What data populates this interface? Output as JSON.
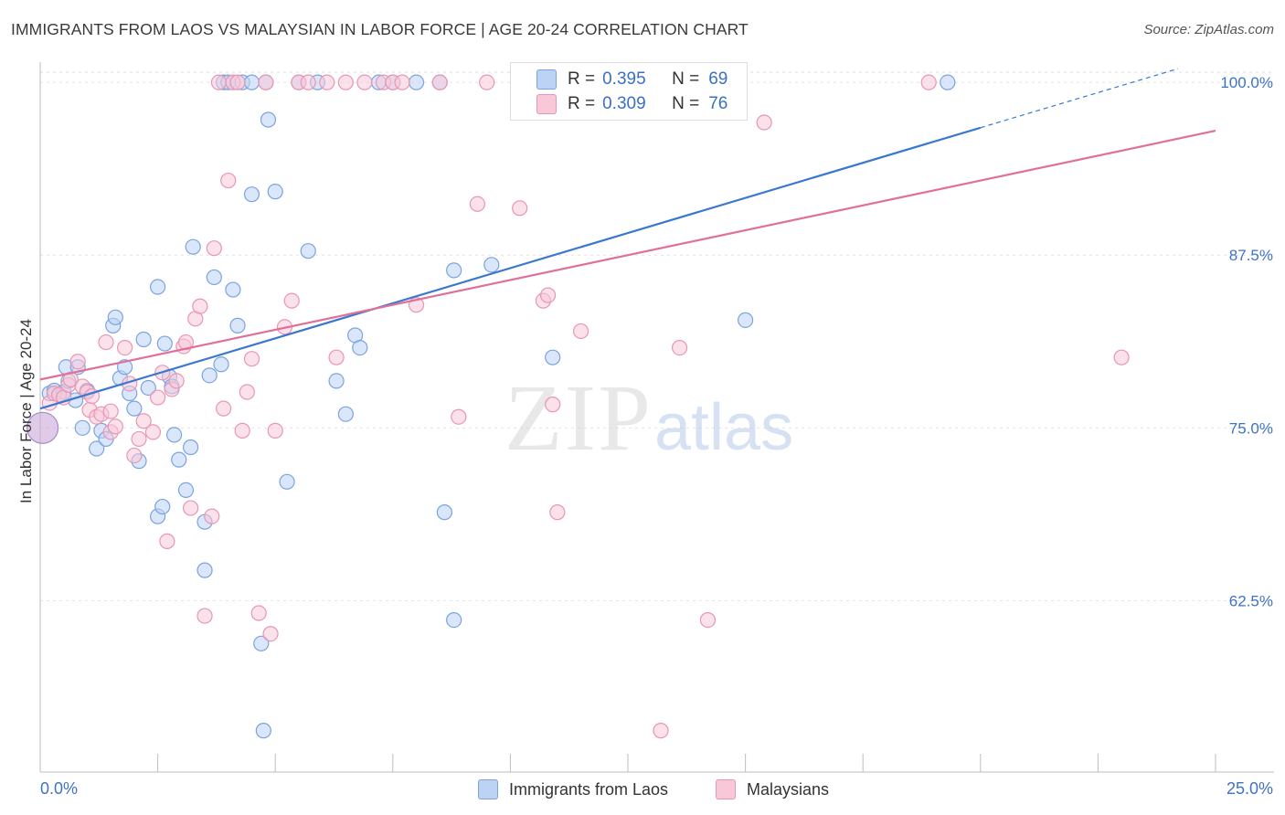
{
  "header": {
    "title": "IMMIGRANTS FROM LAOS VS MALAYSIAN IN LABOR FORCE | AGE 20-24 CORRELATION CHART",
    "source": "Source: ZipAtlas.com"
  },
  "watermark": {
    "zip": "ZIP",
    "atlas": "atlas"
  },
  "legend": {
    "r_key": "R =",
    "n_key": "N =",
    "rows": [
      {
        "r": "0.395",
        "n": "69",
        "fill": "#bcd3f5",
        "stroke": "#7aa3e0"
      },
      {
        "r": "0.309",
        "n": "76",
        "fill": "#f8c8d8",
        "stroke": "#e896b3"
      }
    ]
  },
  "chart_data": {
    "type": "scatter",
    "title": "IMMIGRANTS FROM LAOS VS MALAYSIAN IN LABOR FORCE | AGE 20-24 CORRELATION CHART",
    "ylabel": "In Labor Force | Age 20-24",
    "xlabel": "",
    "xlim": [
      0,
      25
    ],
    "ylim": [
      50.1,
      101.2
    ],
    "x_tick_labels": [
      "0.0%",
      "25.0%"
    ],
    "y_ticks": [
      {
        "value": 100,
        "label": "100.0%"
      },
      {
        "value": 87.5,
        "label": "87.5%"
      },
      {
        "value": 75,
        "label": "75.0%"
      },
      {
        "value": 62.5,
        "label": "62.5%"
      }
    ],
    "grid": "horizontal dashed",
    "colors": {
      "blue": "#3a78d0",
      "pink": "#e0709a",
      "axis_text": "#3f72c8"
    },
    "series": [
      {
        "name": "Immigrants from Laos",
        "color": "#7aa3e0",
        "fill": "#bcd3f5",
        "trend": {
          "x0": 0,
          "y0": 76.4,
          "x1": 25,
          "y1": 101.8,
          "solid_to": 20
        },
        "points": [
          [
            0.2,
            77.5
          ],
          [
            0.3,
            77.7
          ],
          [
            0.4,
            77.4
          ],
          [
            0.5,
            77.6
          ],
          [
            0.55,
            79.4
          ],
          [
            0.6,
            78.4
          ],
          [
            0.75,
            77.0
          ],
          [
            0.8,
            79.4
          ],
          [
            0.9,
            75.0
          ],
          [
            1.0,
            77.7
          ],
          [
            1.2,
            73.5
          ],
          [
            1.3,
            74.8
          ],
          [
            1.4,
            74.2
          ],
          [
            1.55,
            82.4
          ],
          [
            1.6,
            83.0
          ],
          [
            1.7,
            78.6
          ],
          [
            1.8,
            79.4
          ],
          [
            1.9,
            77.5
          ],
          [
            2.0,
            76.4
          ],
          [
            2.1,
            72.6
          ],
          [
            2.2,
            81.4
          ],
          [
            2.3,
            77.9
          ],
          [
            2.5,
            68.6
          ],
          [
            2.5,
            85.2
          ],
          [
            2.6,
            69.3
          ],
          [
            2.65,
            81.1
          ],
          [
            2.75,
            78.7
          ],
          [
            2.8,
            78.0
          ],
          [
            2.85,
            74.5
          ],
          [
            2.95,
            72.7
          ],
          [
            3.1,
            70.5
          ],
          [
            3.2,
            73.6
          ],
          [
            3.25,
            88.1
          ],
          [
            3.5,
            64.7
          ],
          [
            3.5,
            68.2
          ],
          [
            3.6,
            78.8
          ],
          [
            3.7,
            85.9
          ],
          [
            3.85,
            79.6
          ],
          [
            3.9,
            100
          ],
          [
            4.0,
            100
          ],
          [
            4.1,
            85.0
          ],
          [
            4.2,
            82.4
          ],
          [
            4.3,
            100
          ],
          [
            4.5,
            91.9
          ],
          [
            4.5,
            100
          ],
          [
            4.7,
            59.4
          ],
          [
            4.8,
            100
          ],
          [
            4.85,
            97.3
          ],
          [
            4.75,
            53.1
          ],
          [
            5.0,
            92.1
          ],
          [
            5.25,
            71.1
          ],
          [
            5.5,
            100
          ],
          [
            5.7,
            87.8
          ],
          [
            5.9,
            100
          ],
          [
            6.3,
            78.4
          ],
          [
            6.5,
            76.0
          ],
          [
            6.7,
            81.7
          ],
          [
            6.8,
            80.8
          ],
          [
            7.2,
            100
          ],
          [
            7.5,
            100
          ],
          [
            8.0,
            100
          ],
          [
            8.5,
            100
          ],
          [
            8.6,
            68.9
          ],
          [
            8.8,
            86.4
          ],
          [
            8.8,
            61.1
          ],
          [
            9.6,
            86.8
          ],
          [
            10.9,
            80.1
          ],
          [
            15.0,
            82.8
          ],
          [
            19.3,
            100
          ]
        ]
      },
      {
        "name": "Malaysians",
        "color": "#e896b3",
        "fill": "#f8c8d8",
        "trend": {
          "x0": 0,
          "y0": 78.5,
          "x1": 25,
          "y1": 96.5,
          "solid_to": 25
        },
        "points": [
          [
            0.2,
            76.8
          ],
          [
            0.3,
            77.5
          ],
          [
            0.4,
            77.4
          ],
          [
            0.5,
            77.2
          ],
          [
            0.6,
            78.1
          ],
          [
            0.65,
            78.5
          ],
          [
            0.8,
            79.8
          ],
          [
            0.9,
            78.0
          ],
          [
            1.0,
            77.6
          ],
          [
            1.05,
            76.3
          ],
          [
            1.1,
            77.3
          ],
          [
            1.2,
            75.8
          ],
          [
            1.3,
            76.0
          ],
          [
            1.4,
            81.2
          ],
          [
            1.5,
            74.7
          ],
          [
            1.5,
            76.2
          ],
          [
            1.6,
            75.1
          ],
          [
            1.8,
            80.8
          ],
          [
            1.9,
            78.2
          ],
          [
            2.0,
            73.0
          ],
          [
            2.1,
            74.2
          ],
          [
            2.2,
            75.5
          ],
          [
            2.4,
            74.7
          ],
          [
            2.5,
            77.2
          ],
          [
            2.6,
            79.0
          ],
          [
            2.7,
            66.8
          ],
          [
            2.8,
            77.8
          ],
          [
            2.9,
            78.4
          ],
          [
            3.05,
            80.9
          ],
          [
            3.1,
            81.2
          ],
          [
            3.2,
            69.2
          ],
          [
            3.3,
            82.9
          ],
          [
            3.4,
            83.8
          ],
          [
            3.5,
            61.4
          ],
          [
            3.65,
            68.6
          ],
          [
            3.7,
            88.0
          ],
          [
            3.8,
            100
          ],
          [
            3.9,
            76.4
          ],
          [
            4.0,
            92.9
          ],
          [
            4.1,
            100
          ],
          [
            4.2,
            100
          ],
          [
            4.3,
            74.8
          ],
          [
            4.4,
            77.6
          ],
          [
            4.5,
            80.0
          ],
          [
            4.65,
            61.6
          ],
          [
            4.8,
            100
          ],
          [
            4.9,
            60.1
          ],
          [
            5.0,
            74.8
          ],
          [
            5.2,
            82.3
          ],
          [
            5.35,
            84.2
          ],
          [
            5.5,
            100
          ],
          [
            5.7,
            100
          ],
          [
            6.1,
            100
          ],
          [
            6.3,
            80.1
          ],
          [
            6.5,
            100
          ],
          [
            6.9,
            100
          ],
          [
            7.3,
            100
          ],
          [
            7.5,
            100
          ],
          [
            7.7,
            100
          ],
          [
            8.0,
            83.9
          ],
          [
            8.5,
            100
          ],
          [
            8.9,
            75.8
          ],
          [
            9.3,
            91.2
          ],
          [
            9.5,
            100
          ],
          [
            10.2,
            90.9
          ],
          [
            10.7,
            84.2
          ],
          [
            10.8,
            84.6
          ],
          [
            10.9,
            76.7
          ],
          [
            11.0,
            68.9
          ],
          [
            11.5,
            82.0
          ],
          [
            13.2,
            53.1
          ],
          [
            13.6,
            80.8
          ],
          [
            14.2,
            61.1
          ],
          [
            15.4,
            97.1
          ],
          [
            18.9,
            100
          ],
          [
            23.0,
            80.1
          ]
        ]
      }
    ]
  }
}
